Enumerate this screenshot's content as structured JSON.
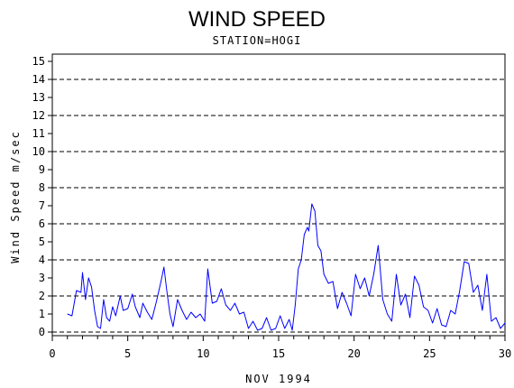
{
  "chart_data": {
    "type": "line",
    "title": "WIND SPEED",
    "subtitle": "STATION=HOGI",
    "xlabel": "NOV 1994",
    "ylabel": "Wind Speed m/sec",
    "xlim": [
      0,
      30
    ],
    "ylim": [
      0,
      15
    ],
    "x_ticks": [
      0,
      5,
      10,
      15,
      20,
      25,
      30
    ],
    "y_ticks": [
      0,
      1,
      2,
      3,
      4,
      5,
      6,
      7,
      8,
      9,
      10,
      11,
      12,
      13,
      14,
      15
    ],
    "grid": "dashed horizontal lines at 0, 2, 4, 6, 8, 10, 12, 14",
    "gridlines": [
      0,
      2,
      4,
      6,
      8,
      10,
      12,
      14
    ],
    "series": [
      {
        "color": "#0000ff",
        "x": [
          1.0,
          1.3,
          1.6,
          1.9,
          2.0,
          2.2,
          2.4,
          2.6,
          2.8,
          3.0,
          3.2,
          3.4,
          3.6,
          3.8,
          4.0,
          4.2,
          4.5,
          4.7,
          5.0,
          5.3,
          5.5,
          5.8,
          6.0,
          6.3,
          6.6,
          6.9,
          7.2,
          7.4,
          7.6,
          7.8,
          8.0,
          8.3,
          8.6,
          8.9,
          9.2,
          9.5,
          9.8,
          10.1,
          10.3,
          10.6,
          10.9,
          11.2,
          11.5,
          11.8,
          12.1,
          12.4,
          12.7,
          13.0,
          13.3,
          13.6,
          13.9,
          14.2,
          14.5,
          14.8,
          15.1,
          15.4,
          15.7,
          15.9,
          16.1,
          16.3,
          16.5,
          16.7,
          16.9,
          17.0,
          17.2,
          17.4,
          17.6,
          17.8,
          18.0,
          18.3,
          18.6,
          18.9,
          19.2,
          19.5,
          19.8,
          20.1,
          20.4,
          20.7,
          21.0,
          21.3,
          21.6,
          21.9,
          22.2,
          22.5,
          22.8,
          23.1,
          23.4,
          23.7,
          24.0,
          24.3,
          24.6,
          24.9,
          25.2,
          25.5,
          25.8,
          26.1,
          26.4,
          26.7,
          27.0,
          27.3,
          27.6,
          27.9,
          28.2,
          28.5,
          28.8,
          29.1,
          29.4,
          29.7,
          30.0
        ],
        "y": [
          1.0,
          0.9,
          2.3,
          2.2,
          3.3,
          1.8,
          3.0,
          2.5,
          1.2,
          0.3,
          0.2,
          1.8,
          0.8,
          0.6,
          1.4,
          0.9,
          2.0,
          1.2,
          1.3,
          2.1,
          1.4,
          0.8,
          1.6,
          1.1,
          0.7,
          1.7,
          2.8,
          3.6,
          2.2,
          1.0,
          0.3,
          1.8,
          1.2,
          0.7,
          1.1,
          0.8,
          1.0,
          0.6,
          3.5,
          1.6,
          1.7,
          2.4,
          1.5,
          1.2,
          1.6,
          1.0,
          1.1,
          0.2,
          0.6,
          0.1,
          0.2,
          0.8,
          0.1,
          0.2,
          0.9,
          0.2,
          0.7,
          0.1,
          1.5,
          3.5,
          4.0,
          5.4,
          5.8,
          5.6,
          7.1,
          6.7,
          4.8,
          4.5,
          3.2,
          2.7,
          2.8,
          1.3,
          2.2,
          1.6,
          0.9,
          3.2,
          2.4,
          3.0,
          2.0,
          3.2,
          4.8,
          1.8,
          1.0,
          0.6,
          3.2,
          1.5,
          2.1,
          0.8,
          3.1,
          2.6,
          1.4,
          1.2,
          0.5,
          1.3,
          0.4,
          0.3,
          1.2,
          1.0,
          2.3,
          3.9,
          3.8,
          2.2,
          2.6,
          1.2,
          3.2,
          0.6,
          0.8,
          0.2,
          0.5
        ]
      }
    ]
  }
}
